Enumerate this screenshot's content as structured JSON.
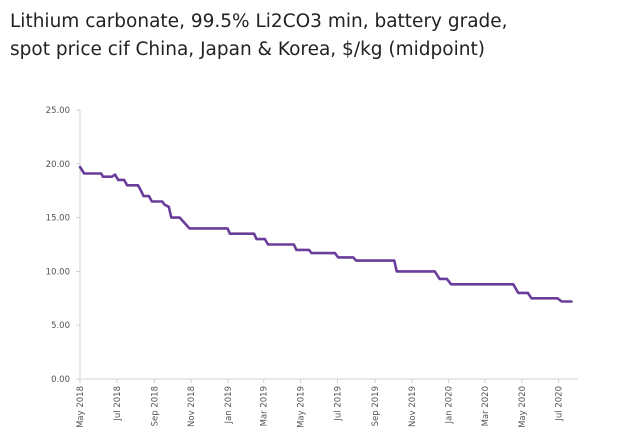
{
  "chart_data": {
    "type": "line",
    "title_lines": [
      "Lithium carbonate, 99.5% Li2CO3 min, battery grade,",
      "spot price cif China, Japan & Korea, $/kg (midpoint)"
    ],
    "xlabel": "",
    "ylabel": "",
    "ylim": [
      0,
      25
    ],
    "yticks": [
      "0.00",
      "5.00",
      "10.00",
      "15.00",
      "20.00",
      "25.00"
    ],
    "xlim": [
      "2018-05-01",
      "2020-08-02"
    ],
    "xticks": [
      {
        "date": "2018-05-01",
        "label": "May 2018"
      },
      {
        "date": "2018-07-01",
        "label": "Jul 2018"
      },
      {
        "date": "2018-09-01",
        "label": "Sep 2018"
      },
      {
        "date": "2018-11-01",
        "label": "Nov 2018"
      },
      {
        "date": "2019-01-01",
        "label": "Jan 2019"
      },
      {
        "date": "2019-03-01",
        "label": "Mar 2019"
      },
      {
        "date": "2019-05-01",
        "label": "May 2019"
      },
      {
        "date": "2019-07-01",
        "label": "Jul 2019"
      },
      {
        "date": "2019-09-01",
        "label": "Sep 2019"
      },
      {
        "date": "2019-11-01",
        "label": "Nov 2019"
      },
      {
        "date": "2020-01-01",
        "label": "Jan 2020"
      },
      {
        "date": "2020-03-01",
        "label": "Mar 2020"
      },
      {
        "date": "2020-05-01",
        "label": "May 2020"
      },
      {
        "date": "2020-07-01",
        "label": "Jul 2020"
      }
    ],
    "grid": false,
    "legend": "none",
    "series": [
      {
        "color": "#6a3d9a",
        "points": [
          [
            "2018-05-01",
            19.7
          ],
          [
            "2018-05-08",
            19.1
          ],
          [
            "2018-06-05",
            19.1
          ],
          [
            "2018-06-08",
            18.8
          ],
          [
            "2018-06-23",
            18.8
          ],
          [
            "2018-06-28",
            19.0
          ],
          [
            "2018-07-03",
            18.5
          ],
          [
            "2018-07-13",
            18.5
          ],
          [
            "2018-07-18",
            18.0
          ],
          [
            "2018-08-05",
            18.0
          ],
          [
            "2018-08-10",
            17.5
          ],
          [
            "2018-08-14",
            17.0
          ],
          [
            "2018-08-23",
            17.0
          ],
          [
            "2018-08-28",
            16.5
          ],
          [
            "2018-09-14",
            16.5
          ],
          [
            "2018-09-18",
            16.2
          ],
          [
            "2018-09-25",
            16.0
          ],
          [
            "2018-09-29",
            15.0
          ],
          [
            "2018-10-13",
            15.0
          ],
          [
            "2018-10-21",
            14.5
          ],
          [
            "2018-10-29",
            14.0
          ],
          [
            "2018-12-31",
            14.0
          ],
          [
            "2019-01-04",
            13.5
          ],
          [
            "2019-02-13",
            13.5
          ],
          [
            "2019-02-17",
            13.0
          ],
          [
            "2019-03-03",
            13.0
          ],
          [
            "2019-03-08",
            12.5
          ],
          [
            "2019-04-20",
            12.5
          ],
          [
            "2019-04-24",
            12.0
          ],
          [
            "2019-05-15",
            12.0
          ],
          [
            "2019-05-19",
            11.7
          ],
          [
            "2019-06-27",
            11.7
          ],
          [
            "2019-07-02",
            11.3
          ],
          [
            "2019-07-27",
            11.3
          ],
          [
            "2019-08-01",
            11.0
          ],
          [
            "2019-10-03",
            11.0
          ],
          [
            "2019-10-07",
            10.0
          ],
          [
            "2019-12-09",
            10.0
          ],
          [
            "2019-12-17",
            9.3
          ],
          [
            "2019-12-29",
            9.3
          ],
          [
            "2020-01-05",
            8.8
          ],
          [
            "2020-04-17",
            8.8
          ],
          [
            "2020-04-25",
            8.0
          ],
          [
            "2020-05-11",
            8.0
          ],
          [
            "2020-05-17",
            7.5
          ],
          [
            "2020-06-29",
            7.5
          ],
          [
            "2020-07-06",
            7.2
          ],
          [
            "2020-07-22",
            7.2
          ]
        ]
      }
    ]
  }
}
